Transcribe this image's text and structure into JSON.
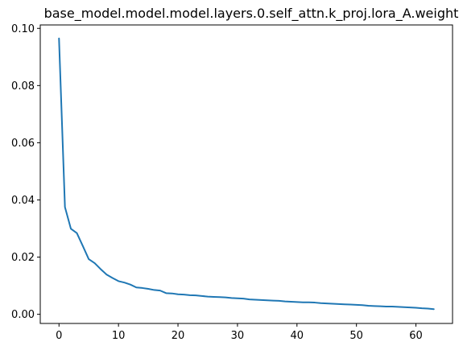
{
  "chart_data": {
    "type": "line",
    "title": "base_model.model.model.layers.0.self_attn.k_proj.lora_A.weight",
    "xlabel": "",
    "ylabel": "",
    "xlim": [
      -3.15,
      66.15
    ],
    "ylim": [
      -0.0032,
      0.1012
    ],
    "grid": false,
    "x_ticks": [
      0,
      10,
      20,
      30,
      40,
      50,
      60
    ],
    "x_tick_labels": [
      "0",
      "10",
      "20",
      "30",
      "40",
      "50",
      "60"
    ],
    "y_ticks": [
      0.0,
      0.02,
      0.04,
      0.06,
      0.08,
      0.1
    ],
    "y_tick_labels": [
      "0.00",
      "0.02",
      "0.04",
      "0.06",
      "0.08",
      "0.10"
    ],
    "series": [
      {
        "color": "#1f77b4",
        "x": [
          0,
          1,
          2,
          3,
          4,
          5,
          6,
          7,
          8,
          9,
          10,
          11,
          12,
          13,
          14,
          15,
          16,
          17,
          18,
          19,
          20,
          21,
          22,
          23,
          24,
          25,
          26,
          27,
          28,
          29,
          30,
          31,
          32,
          33,
          34,
          35,
          36,
          37,
          38,
          39,
          40,
          41,
          42,
          43,
          44,
          45,
          46,
          47,
          48,
          49,
          50,
          51,
          52,
          53,
          54,
          55,
          56,
          57,
          58,
          59,
          60,
          61,
          62,
          63
        ],
        "values": [
          0.0965,
          0.0375,
          0.0299,
          0.0284,
          0.0239,
          0.0193,
          0.0179,
          0.0158,
          0.0139,
          0.0127,
          0.0116,
          0.0111,
          0.0104,
          0.0094,
          0.0092,
          0.0089,
          0.0085,
          0.0083,
          0.0074,
          0.0073,
          0.007,
          0.0069,
          0.0067,
          0.0066,
          0.0064,
          0.0062,
          0.0061,
          0.006,
          0.0059,
          0.0057,
          0.0056,
          0.0055,
          0.0052,
          0.0051,
          0.005,
          0.0049,
          0.0048,
          0.0047,
          0.0045,
          0.0044,
          0.0043,
          0.0042,
          0.0042,
          0.0041,
          0.0039,
          0.0038,
          0.0037,
          0.0036,
          0.0035,
          0.0034,
          0.0033,
          0.0032,
          0.003,
          0.0029,
          0.0028,
          0.0027,
          0.0027,
          0.0026,
          0.0025,
          0.0024,
          0.0023,
          0.0021,
          0.002,
          0.0018
        ]
      }
    ]
  }
}
